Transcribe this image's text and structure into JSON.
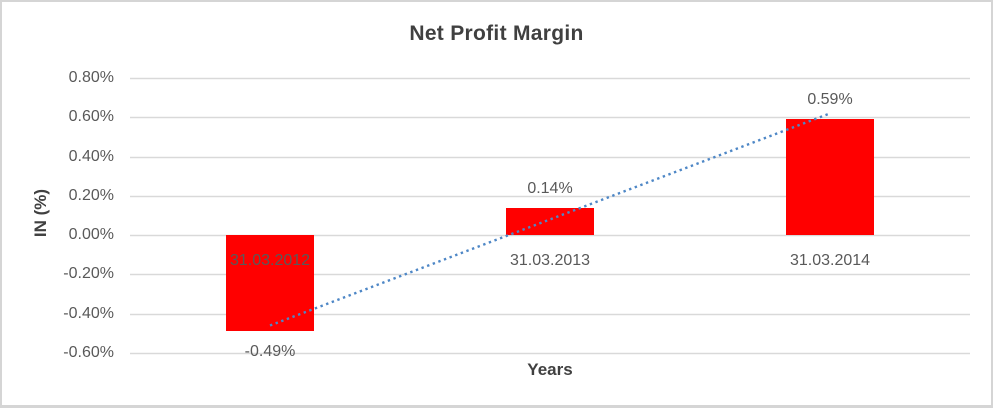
{
  "chart_data": {
    "type": "bar",
    "title": "Net Profit Margin",
    "xlabel": "Years",
    "ylabel": "IN (%)",
    "categories": [
      "31.03.2012",
      "31.03.2013",
      "31.03.2014"
    ],
    "values": [
      -0.49,
      0.14,
      0.59
    ],
    "data_labels": [
      "-0.49%",
      "0.14%",
      "0.59%"
    ],
    "y_ticks": [
      {
        "label": "0.80%",
        "value": 0.8
      },
      {
        "label": "0.60%",
        "value": 0.6
      },
      {
        "label": "0.40%",
        "value": 0.4
      },
      {
        "label": "0.20%",
        "value": 0.2
      },
      {
        "label": "0.00%",
        "value": 0.0
      },
      {
        "label": "-0.20%",
        "value": -0.2
      },
      {
        "label": "-0.40%",
        "value": -0.4
      },
      {
        "label": "-0.60%",
        "value": -0.6
      }
    ],
    "ylim": [
      -0.6,
      0.8
    ],
    "grid": true,
    "legend": "none",
    "bar_color": "#FF0000",
    "trendline": {
      "type": "linear",
      "style": "dotted",
      "color": "#4E87C6",
      "start_value": -0.46,
      "end_value": 0.62
    },
    "colors": {
      "title_text": "#404040",
      "axis_title_text": "#404040",
      "axis_text": "#595959",
      "gridline": "#D9D9D9",
      "border": "#D5D5D5"
    }
  }
}
